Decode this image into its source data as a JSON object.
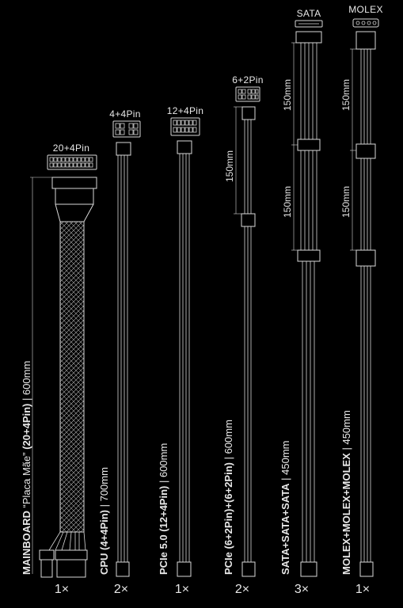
{
  "cables": [
    {
      "id": "mainboard",
      "connector": "20+4Pin",
      "name_bold": "MAINBOARD",
      "name_extra": " “Placa Mãe” ",
      "name_bold2": "(20+4Pin)",
      "length": " | 600mm",
      "qty": "1×"
    },
    {
      "id": "cpu",
      "connector": "4+4Pin",
      "name_bold": "CPU (4+4Pin)",
      "length": " | 700mm",
      "qty": "2×"
    },
    {
      "id": "pcie5",
      "connector": "12+4Pin",
      "name_bold": "PCIe 5.0 (12+4Pin)",
      "length": " | 600mm",
      "qty": "1×"
    },
    {
      "id": "pcie",
      "connector": "6+2Pin",
      "name_bold": "PCIe (6+2Pin)+(6+2Pin)",
      "length": " | 600mm",
      "qty": "2×",
      "segment": "150mm"
    },
    {
      "id": "sata",
      "connector": "SATA",
      "name_bold": "SATA+SATA+SATA",
      "length": " | 450mm",
      "qty": "3×",
      "segments": [
        "150mm",
        "150mm"
      ]
    },
    {
      "id": "molex",
      "connector": "MOLEX",
      "name_bold": "MOLEX+MOLEX+MOLEX",
      "length": " | 450mm",
      "qty": "1×",
      "segments": [
        "150mm",
        "150mm"
      ]
    }
  ],
  "colors": {
    "background": "#000000",
    "line": "#d8d8d8",
    "text": "#e8e8e8"
  }
}
